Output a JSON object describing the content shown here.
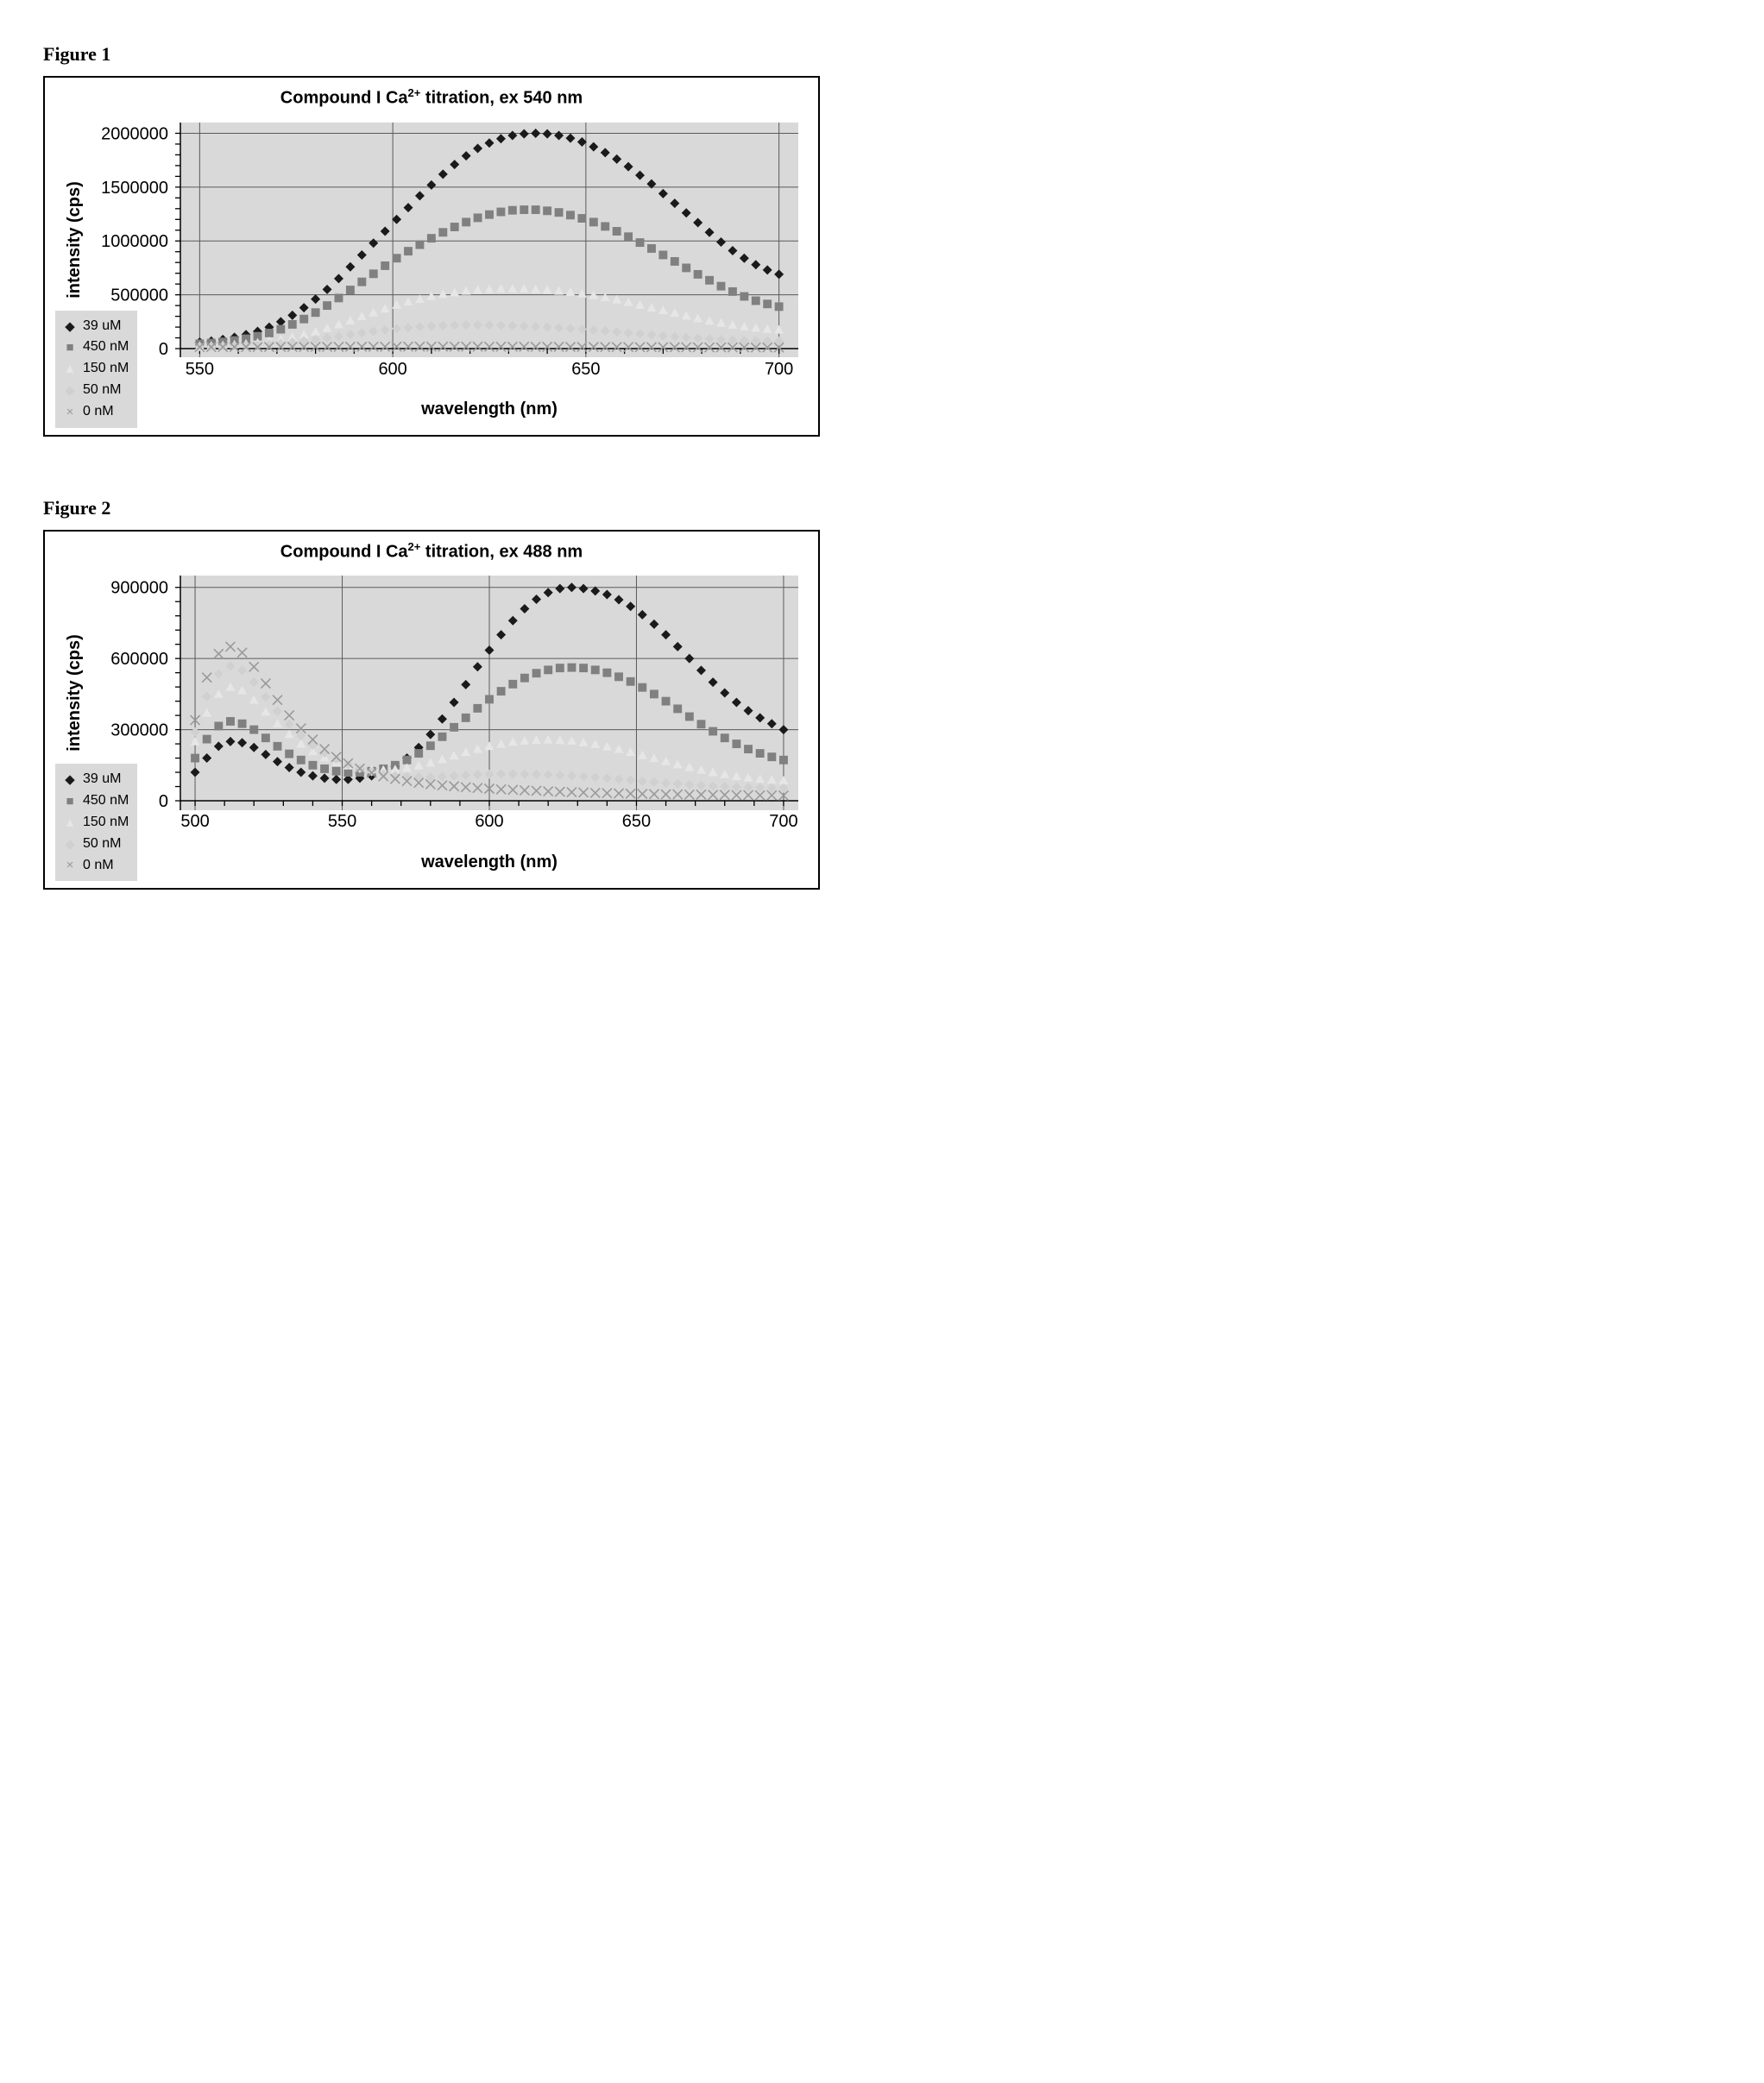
{
  "figures": [
    {
      "label": "Figure 1",
      "chart": {
        "type": "scatter-line",
        "title_prefix": "Compound I Ca",
        "title_sup": "2+",
        "title_suffix": " titration, ex 540 nm",
        "title_fontsize": 20,
        "background_color": "#d9d9d9",
        "plot_background": "#d9d9d9",
        "gridline_color": "#5a5a5a",
        "border_color": "#000000",
        "xlabel": "wavelength (nm)",
        "ylabel": "intensity (cps)",
        "label_fontsize": 20,
        "label_fontweight": "bold",
        "tick_fontsize": 20,
        "xlim": [
          545,
          705
        ],
        "ylim": [
          -80000,
          2100000
        ],
        "xticks": [
          550,
          600,
          650,
          700
        ],
        "yticks": [
          0,
          500000,
          1000000,
          1500000,
          2000000
        ],
        "minor_xtick_step": 10,
        "marker_size": 5.5,
        "x_values": [
          550,
          553,
          556,
          559,
          562,
          565,
          568,
          571,
          574,
          577,
          580,
          583,
          586,
          589,
          592,
          595,
          598,
          601,
          604,
          607,
          610,
          613,
          616,
          619,
          622,
          625,
          628,
          631,
          634,
          637,
          640,
          643,
          646,
          649,
          652,
          655,
          658,
          661,
          664,
          667,
          670,
          673,
          676,
          679,
          682,
          685,
          688,
          691,
          694,
          697,
          700
        ],
        "series": [
          {
            "name": "39 uM",
            "marker": "diamond",
            "color": "#1a1a1a",
            "y": [
              60000,
              70000,
              85000,
              105000,
              130000,
              160000,
              200000,
              250000,
              310000,
              380000,
              460000,
              550000,
              650000,
              760000,
              870000,
              980000,
              1090000,
              1200000,
              1310000,
              1420000,
              1520000,
              1620000,
              1710000,
              1790000,
              1860000,
              1910000,
              1950000,
              1980000,
              1995000,
              2000000,
              1995000,
              1980000,
              1955000,
              1920000,
              1875000,
              1820000,
              1760000,
              1690000,
              1610000,
              1530000,
              1440000,
              1350000,
              1260000,
              1170000,
              1080000,
              990000,
              910000,
              840000,
              780000,
              730000,
              690000
            ]
          },
          {
            "name": "450 nM",
            "marker": "square",
            "color": "#808080",
            "y": [
              45000,
              52000,
              62000,
              75000,
              92000,
              115000,
              145000,
              180000,
              225000,
              275000,
              335000,
              400000,
              470000,
              545000,
              620000,
              695000,
              770000,
              840000,
              905000,
              965000,
              1025000,
              1080000,
              1130000,
              1175000,
              1215000,
              1245000,
              1270000,
              1285000,
              1290000,
              1290000,
              1280000,
              1265000,
              1240000,
              1210000,
              1175000,
              1135000,
              1090000,
              1040000,
              985000,
              930000,
              870000,
              810000,
              750000,
              690000,
              635000,
              580000,
              530000,
              485000,
              445000,
              415000,
              390000
            ]
          },
          {
            "name": "150 nM",
            "marker": "triangle",
            "color": "#e6e6e6",
            "y": [
              25000,
              28000,
              32000,
              38000,
              45000,
              55000,
              68000,
              85000,
              105000,
              130000,
              158000,
              190000,
              225000,
              260000,
              300000,
              335000,
              370000,
              405000,
              435000,
              460000,
              485000,
              505000,
              520000,
              535000,
              545000,
              550000,
              555000,
              555000,
              555000,
              550000,
              545000,
              535000,
              525000,
              510000,
              495000,
              475000,
              455000,
              430000,
              405000,
              380000,
              355000,
              330000,
              305000,
              280000,
              258000,
              238000,
              220000,
              205000,
              192000,
              182000,
              175000
            ]
          },
          {
            "name": "50 nM",
            "marker": "diamond",
            "color": "#d0d0d0",
            "y": [
              18000,
              20000,
              23000,
              26000,
              30000,
              35000,
              42000,
              50000,
              60000,
              72000,
              85000,
              100000,
              115000,
              130000,
              145000,
              160000,
              173000,
              185000,
              195000,
              203000,
              210000,
              215000,
              218000,
              220000,
              220000,
              219000,
              217000,
              214000,
              210000,
              205000,
              200000,
              194000,
              187000,
              180000,
              172000,
              164000,
              155000,
              146000,
              137000,
              128000,
              119000,
              111000,
              103000,
              96000,
              90000,
              84000,
              79000,
              75000,
              72000,
              70000,
              68000
            ]
          },
          {
            "name": "0 nM",
            "marker": "x",
            "color": "#9a9a9a",
            "y": [
              15000,
              15000,
              15000,
              15000,
              15000,
              15000,
              16000,
              16000,
              16000,
              16000,
              17000,
              17000,
              17000,
              18000,
              18000,
              18000,
              18000,
              19000,
              19000,
              19000,
              19000,
              19000,
              19000,
              19000,
              19000,
              18000,
              18000,
              18000,
              18000,
              17000,
              17000,
              17000,
              16000,
              16000,
              16000,
              15000,
              15000,
              15000,
              14000,
              14000,
              14000,
              13000,
              13000,
              13000,
              12000,
              12000,
              12000,
              12000,
              11000,
              11000,
              11000
            ]
          }
        ],
        "legend": {
          "background": "#d9d9d9",
          "fontsize": 16,
          "items": [
            {
              "marker": "diamond",
              "color": "#1a1a1a",
              "label": "39 uM"
            },
            {
              "marker": "square",
              "color": "#808080",
              "label": "450 nM"
            },
            {
              "marker": "triangle",
              "color": "#e6e6e6",
              "label": "150 nM"
            },
            {
              "marker": "diamond",
              "color": "#d0d0d0",
              "label": "50 nM"
            },
            {
              "marker": "x",
              "color": "#9a9a9a",
              "label": "0 nM"
            }
          ]
        }
      }
    },
    {
      "label": "Figure 2",
      "chart": {
        "type": "scatter-line",
        "title_prefix": "Compound I Ca",
        "title_sup": "2+",
        "title_suffix": " titration, ex 488 nm",
        "title_fontsize": 20,
        "background_color": "#d9d9d9",
        "plot_background": "#d9d9d9",
        "gridline_color": "#5a5a5a",
        "border_color": "#000000",
        "xlabel": "wavelength (nm)",
        "ylabel": "intensity (cps)",
        "label_fontsize": 20,
        "label_fontweight": "bold",
        "tick_fontsize": 20,
        "xlim": [
          495,
          705
        ],
        "ylim": [
          -40000,
          950000
        ],
        "xticks": [
          500,
          550,
          600,
          650,
          700
        ],
        "yticks": [
          0,
          300000,
          600000,
          900000
        ],
        "minor_xtick_step": 10,
        "marker_size": 5.5,
        "x_values": [
          500,
          504,
          508,
          512,
          516,
          520,
          524,
          528,
          532,
          536,
          540,
          544,
          548,
          552,
          556,
          560,
          564,
          568,
          572,
          576,
          580,
          584,
          588,
          592,
          596,
          600,
          604,
          608,
          612,
          616,
          620,
          624,
          628,
          632,
          636,
          640,
          644,
          648,
          652,
          656,
          660,
          664,
          668,
          672,
          676,
          680,
          684,
          688,
          692,
          696,
          700
        ],
        "series": [
          {
            "name": "39 uM",
            "marker": "diamond",
            "color": "#1a1a1a",
            "y": [
              120000,
              180000,
              230000,
              250000,
              245000,
              225000,
              195000,
              165000,
              140000,
              120000,
              105000,
              95000,
              90000,
              90000,
              95000,
              105000,
              120000,
              145000,
              180000,
              225000,
              280000,
              345000,
              415000,
              490000,
              565000,
              635000,
              700000,
              760000,
              810000,
              850000,
              878000,
              895000,
              900000,
              895000,
              885000,
              870000,
              848000,
              820000,
              785000,
              745000,
              700000,
              650000,
              600000,
              550000,
              500000,
              455000,
              415000,
              380000,
              350000,
              325000,
              300000
            ]
          },
          {
            "name": "450 nM",
            "marker": "square",
            "color": "#808080",
            "y": [
              180000,
              260000,
              315000,
              335000,
              325000,
              300000,
              265000,
              230000,
              198000,
              172000,
              150000,
              135000,
              125000,
              120000,
              120000,
              125000,
              135000,
              150000,
              172000,
              200000,
              232000,
              270000,
              310000,
              350000,
              390000,
              428000,
              462000,
              492000,
              518000,
              538000,
              552000,
              560000,
              562000,
              560000,
              552000,
              540000,
              523000,
              503000,
              478000,
              450000,
              420000,
              388000,
              355000,
              323000,
              293000,
              265000,
              240000,
              218000,
              200000,
              185000,
              172000
            ]
          },
          {
            "name": "150 nM",
            "marker": "triangle",
            "color": "#e6e6e6",
            "y": [
              250000,
              370000,
              450000,
              480000,
              465000,
              425000,
              375000,
              325000,
              280000,
              240000,
              208000,
              182000,
              162000,
              148000,
              138000,
              132000,
              130000,
              132000,
              138000,
              148000,
              160000,
              175000,
              190000,
              205000,
              218000,
              230000,
              240000,
              248000,
              253000,
              256000,
              257000,
              255000,
              252000,
              246000,
              238000,
              228000,
              217000,
              205000,
              192000,
              179000,
              166000,
              153000,
              141000,
              130000,
              120000,
              111000,
              103000,
              97000,
              92000,
              88000,
              85000
            ]
          },
          {
            "name": "50 nM",
            "marker": "diamond",
            "color": "#d0d0d0",
            "y": [
              290000,
              440000,
              535000,
              568000,
              550000,
              500000,
              438000,
              378000,
              323000,
              275000,
              235000,
              202000,
              175000,
              153000,
              136000,
              123000,
              113000,
              106000,
              102000,
              100000,
              100000,
              102000,
              105000,
              108000,
              110000,
              112000,
              113000,
              113000,
              113000,
              112000,
              110000,
              108000,
              105000,
              102000,
              99000,
              95000,
              91000,
              87000,
              83000,
              79000,
              75000,
              71000,
              68000,
              65000,
              62000,
              60000,
              58000,
              56000,
              55000,
              54000,
              53000
            ]
          },
          {
            "name": "0 nM",
            "marker": "x",
            "color": "#9a9a9a",
            "y": [
              340000,
              520000,
              620000,
              650000,
              625000,
              565000,
              495000,
              425000,
              360000,
              305000,
              258000,
              218000,
              185000,
              158000,
              136000,
              118000,
              103000,
              92000,
              83000,
              76000,
              70000,
              65000,
              61000,
              57000,
              54000,
              51000,
              48000,
              46000,
              44000,
              42000,
              40000,
              38000,
              36000,
              35000,
              33000,
              32000,
              31000,
              30000,
              29000,
              28000,
              27000,
              27000,
              26000,
              26000,
              25000,
              25000,
              24000,
              24000,
              23000,
              23000,
              22000
            ]
          }
        ],
        "legend": {
          "background": "#d9d9d9",
          "fontsize": 16,
          "items": [
            {
              "marker": "diamond",
              "color": "#1a1a1a",
              "label": "39 uM"
            },
            {
              "marker": "square",
              "color": "#808080",
              "label": "450 nM"
            },
            {
              "marker": "triangle",
              "color": "#e6e6e6",
              "label": "150 nM"
            },
            {
              "marker": "diamond",
              "color": "#d0d0d0",
              "label": "50 nM"
            },
            {
              "marker": "x",
              "color": "#9a9a9a",
              "label": "0 nM"
            }
          ]
        }
      }
    }
  ]
}
